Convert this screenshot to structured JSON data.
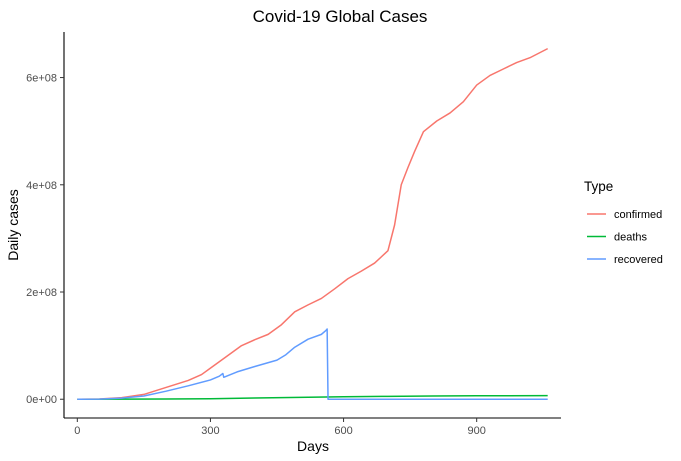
{
  "chart_data": {
    "type": "line",
    "title": "Covid-19 Global Cases",
    "xlabel": "Days",
    "ylabel": "Daily cases",
    "xlim": [
      -30,
      1090
    ],
    "ylim": [
      -35000000.0,
      685000000.0
    ],
    "x_ticks": [
      0,
      300,
      600,
      900
    ],
    "x_tick_labels": [
      "0",
      "300",
      "600",
      "900"
    ],
    "y_ticks": [
      0,
      200000000,
      400000000,
      600000000
    ],
    "y_tick_labels": [
      "0e+00",
      "2e+08",
      "4e+08",
      "6e+08"
    ],
    "grid": false,
    "legend": {
      "title": "Type",
      "position": "right"
    },
    "series": [
      {
        "name": "confirmed",
        "color": "#F8766D",
        "points": [
          [
            0,
            0
          ],
          [
            50,
            500000
          ],
          [
            100,
            3000000
          ],
          [
            150,
            9000000
          ],
          [
            200,
            22000000
          ],
          [
            250,
            35000000
          ],
          [
            280,
            46000000
          ],
          [
            300,
            58000000
          ],
          [
            330,
            76000000
          ],
          [
            370,
            100000000
          ],
          [
            400,
            111000000
          ],
          [
            430,
            121000000
          ],
          [
            460,
            139000000
          ],
          [
            490,
            163000000
          ],
          [
            520,
            176000000
          ],
          [
            550,
            188000000
          ],
          [
            580,
            206000000
          ],
          [
            610,
            225000000
          ],
          [
            640,
            239000000
          ],
          [
            670,
            254000000
          ],
          [
            700,
            277000000
          ],
          [
            715,
            325000000
          ],
          [
            730,
            400000000
          ],
          [
            745,
            432000000
          ],
          [
            760,
            462000000
          ],
          [
            780,
            499000000
          ],
          [
            810,
            519000000
          ],
          [
            840,
            534000000
          ],
          [
            870,
            555000000
          ],
          [
            900,
            586000000
          ],
          [
            930,
            604000000
          ],
          [
            960,
            616000000
          ],
          [
            990,
            628000000
          ],
          [
            1020,
            637000000
          ],
          [
            1060,
            654000000
          ]
        ]
      },
      {
        "name": "deaths",
        "color": "#00BA38",
        "points": [
          [
            0,
            0
          ],
          [
            100,
            200000
          ],
          [
            200,
            500000
          ],
          [
            300,
            1000000
          ],
          [
            400,
            2400000
          ],
          [
            500,
            3500000
          ],
          [
            560,
            4100000
          ],
          [
            600,
            4700000
          ],
          [
            700,
            5400000
          ],
          [
            800,
            6000000
          ],
          [
            900,
            6400000
          ],
          [
            1060,
            6700000
          ]
        ]
      },
      {
        "name": "recovered",
        "color": "#619CFF",
        "points": [
          [
            0,
            0
          ],
          [
            50,
            300000
          ],
          [
            100,
            2000000
          ],
          [
            150,
            6000000
          ],
          [
            200,
            15000000
          ],
          [
            250,
            25000000
          ],
          [
            300,
            36000000
          ],
          [
            320,
            43000000
          ],
          [
            328,
            48000000
          ],
          [
            330,
            41000000
          ],
          [
            360,
            51000000
          ],
          [
            400,
            61000000
          ],
          [
            450,
            73000000
          ],
          [
            470,
            83000000
          ],
          [
            490,
            97000000
          ],
          [
            520,
            112000000
          ],
          [
            550,
            121000000
          ],
          [
            560,
            128000000
          ],
          [
            563,
            131000000
          ],
          [
            565,
            0
          ],
          [
            600,
            0
          ],
          [
            700,
            0
          ],
          [
            800,
            0
          ],
          [
            900,
            0
          ],
          [
            1060,
            0
          ]
        ]
      }
    ]
  }
}
